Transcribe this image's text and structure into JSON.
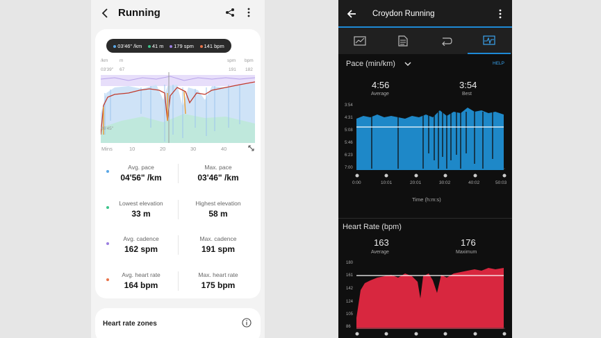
{
  "samsung": {
    "title": "Running",
    "tooltip": {
      "pace": "03'46\" /km",
      "elevation": "41 m",
      "cadence": "179 spm",
      "heart_rate": "141 bpm"
    },
    "axis": {
      "top_left_unit1": "/km",
      "top_left_unit2": "m",
      "top_right_unit1": "spm",
      "top_right_unit2": "bpm",
      "pace_top": "03'39\"",
      "elev_top": "67",
      "cad_top": "191",
      "hr_top": "182",
      "pace_bottom": "06'45\"",
      "x_label": "Mins",
      "x_ticks": [
        "10",
        "20",
        "30",
        "40"
      ]
    },
    "stats": [
      {
        "label": "Avg. pace",
        "value": "04'56\" /km"
      },
      {
        "label": "Max. pace",
        "value": "03'46\" /km"
      },
      {
        "label": "Lowest elevation",
        "value": "33 m"
      },
      {
        "label": "Highest elevation",
        "value": "58 m"
      },
      {
        "label": "Avg. cadence",
        "value": "162 spm"
      },
      {
        "label": "Max. cadence",
        "value": "191 spm"
      },
      {
        "label": "Avg. heart rate",
        "value": "164 bpm"
      },
      {
        "label": "Max. heart rate",
        "value": "175 bpm"
      }
    ],
    "hr_zones_label": "Heart rate zones",
    "colors": {
      "pace": "#5aa7e6",
      "elevation": "#3cc48a",
      "cadence": "#9b7fe0",
      "heart_rate": "#e8734a"
    }
  },
  "garmin": {
    "title": "Croydon Running",
    "pace": {
      "header": "Pace (min/km)",
      "help": "HELP",
      "average": "4:56",
      "average_label": "Average",
      "best": "3:54",
      "best_label": "Best",
      "y_ticks": [
        "3:54",
        "4:31",
        "5:08",
        "5:46",
        "6:23",
        "7:00"
      ],
      "x_ticks": [
        "0:00",
        "10:01",
        "20:01",
        "30:02",
        "40:02",
        "50:03"
      ],
      "x_label": "Time (h:m:s)"
    },
    "heart_rate": {
      "header": "Heart Rate (bpm)",
      "average": "163",
      "average_label": "Average",
      "maximum": "176",
      "maximum_label": "Maximum",
      "y_ticks": [
        "180",
        "161",
        "142",
        "124",
        "105",
        "86"
      ]
    }
  }
}
